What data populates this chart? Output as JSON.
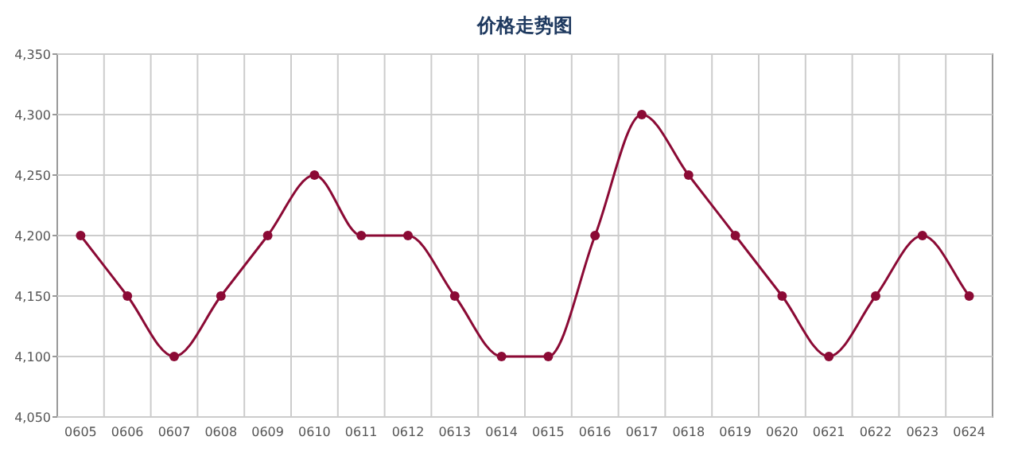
{
  "chart_data": {
    "type": "line",
    "title": "价格走势图",
    "categories": [
      "0605",
      "0606",
      "0607",
      "0608",
      "0609",
      "0610",
      "0611",
      "0612",
      "0613",
      "0614",
      "0615",
      "0616",
      "0617",
      "0618",
      "0619",
      "0620",
      "0621",
      "0622",
      "0623",
      "0624"
    ],
    "series": [
      {
        "color": "#8b0a35",
        "values": [
          4200,
          4150,
          4100,
          4150,
          4200,
          4250,
          4200,
          4200,
          4150,
          4100,
          4100,
          4200,
          4300,
          4250,
          4200,
          4150,
          4100,
          4150,
          4200,
          4150
        ]
      }
    ],
    "ylim": [
      4050,
      4350
    ],
    "yticks": [
      {
        "value": 4050,
        "label": "4,050"
      },
      {
        "value": 4100,
        "label": "4,100"
      },
      {
        "value": 4150,
        "label": "4,150"
      },
      {
        "value": 4200,
        "label": "4,200"
      },
      {
        "value": 4250,
        "label": "4,250"
      },
      {
        "value": 4300,
        "label": "4,300"
      },
      {
        "value": 4350,
        "label": "4,350"
      }
    ],
    "grid": true,
    "marker": "circle",
    "line_style": "solid"
  }
}
